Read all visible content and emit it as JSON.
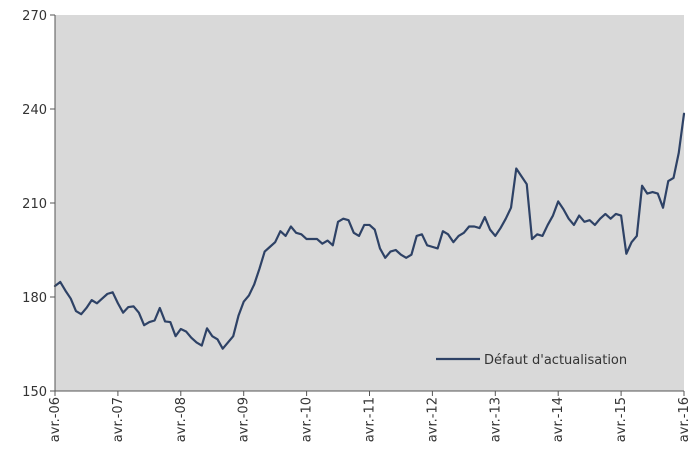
{
  "chart_data": {
    "type": "line",
    "title": "",
    "xlabel": "",
    "ylabel": "",
    "ylim": [
      150,
      270
    ],
    "yticks": [
      150,
      180,
      210,
      240,
      270
    ],
    "xticks": [
      "avr.-06",
      "avr.-07",
      "avr.-08",
      "avr.-09",
      "avr.-10",
      "avr.-11",
      "avr.-12",
      "avr.-13",
      "avr.-14",
      "avr.-15",
      "avr.-16"
    ],
    "x_start": "2006-04",
    "x_end": "2016-04",
    "grid": false,
    "legend_position": "bottom-right",
    "colors": {
      "plot_background": "#d9d9d9",
      "line": "#2e4266",
      "axis": "#555555"
    },
    "series": [
      {
        "name": "Défaut d'actualisation",
        "x": [
          "2006-04",
          "2006-05",
          "2006-06",
          "2006-07",
          "2006-08",
          "2006-09",
          "2006-10",
          "2006-11",
          "2006-12",
          "2007-01",
          "2007-02",
          "2007-03",
          "2007-04",
          "2007-05",
          "2007-06",
          "2007-07",
          "2007-08",
          "2007-09",
          "2007-10",
          "2007-11",
          "2007-12",
          "2008-01",
          "2008-02",
          "2008-03",
          "2008-04",
          "2008-05",
          "2008-06",
          "2008-07",
          "2008-08",
          "2008-09",
          "2008-10",
          "2008-11",
          "2008-12",
          "2009-01",
          "2009-02",
          "2009-03",
          "2009-04",
          "2009-05",
          "2009-06",
          "2009-07",
          "2009-08",
          "2009-09",
          "2009-10",
          "2009-11",
          "2009-12",
          "2010-01",
          "2010-02",
          "2010-03",
          "2010-04",
          "2010-05",
          "2010-06",
          "2010-07",
          "2010-08",
          "2010-09",
          "2010-10",
          "2010-11",
          "2010-12",
          "2011-01",
          "2011-02",
          "2011-03",
          "2011-04",
          "2011-05",
          "2011-06",
          "2011-07",
          "2011-08",
          "2011-09",
          "2011-10",
          "2011-11",
          "2011-12",
          "2012-01",
          "2012-02",
          "2012-03",
          "2012-04",
          "2012-05",
          "2012-06",
          "2012-07",
          "2012-08",
          "2012-09",
          "2012-10",
          "2012-11",
          "2012-12",
          "2013-01",
          "2013-02",
          "2013-03",
          "2013-04",
          "2013-05",
          "2013-06",
          "2013-07",
          "2013-08",
          "2013-09",
          "2013-10",
          "2013-11",
          "2013-12",
          "2014-01",
          "2014-02",
          "2014-03",
          "2014-04",
          "2014-05",
          "2014-06",
          "2014-07",
          "2014-08",
          "2014-09",
          "2014-10",
          "2014-11",
          "2014-12",
          "2015-01",
          "2015-02",
          "2015-03",
          "2015-04",
          "2015-05",
          "2015-06",
          "2015-07",
          "2015-08",
          "2015-09",
          "2015-10",
          "2015-11",
          "2015-12",
          "2016-01",
          "2016-02",
          "2016-03",
          "2016-04"
        ],
        "values": [
          183.5,
          184.8,
          182,
          179.5,
          175.5,
          174.5,
          176.5,
          179,
          178,
          179.5,
          181,
          181.5,
          178,
          175,
          176.8,
          177,
          175,
          171,
          172,
          172.5,
          176.5,
          172.2,
          172,
          167.5,
          169.8,
          169,
          167,
          165.5,
          164.5,
          170,
          167.5,
          166.5,
          163.5,
          165.5,
          167.5,
          174,
          178.5,
          180.5,
          184,
          189,
          194.5,
          196,
          197.5,
          201,
          199.5,
          202.5,
          200.5,
          200,
          198.5,
          198.5,
          198.5,
          197,
          198,
          196.5,
          204,
          205,
          204.5,
          200.5,
          199.5,
          203,
          203,
          201.5,
          195.5,
          192.5,
          194.5,
          195,
          193.5,
          192.5,
          193.5,
          199.5,
          200,
          196.5,
          196,
          195.5,
          201,
          200,
          197.5,
          199.5,
          200.5,
          202.5,
          202.5,
          202,
          205.5,
          201.5,
          199.5,
          202,
          205,
          208.5,
          221,
          218.5,
          216,
          198.5,
          200,
          199.5,
          203,
          206,
          210.5,
          208,
          205,
          203,
          206,
          204,
          204.5,
          203,
          205,
          206.5,
          205,
          206.5,
          206,
          193.8,
          197.5,
          199.5,
          215.5,
          213,
          213.5,
          213,
          208.5,
          217,
          218,
          226,
          238.5
        ]
      }
    ]
  }
}
